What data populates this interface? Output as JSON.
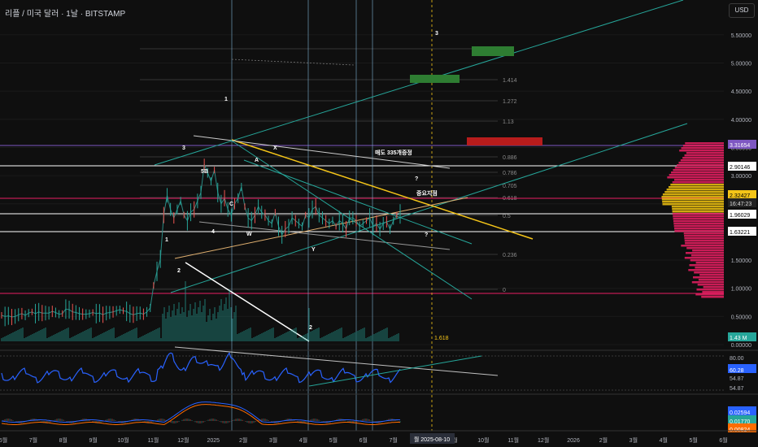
{
  "header": {
    "title": "리플 / 미국 달러 · 1날 · BITSTAMP",
    "currency": "USD"
  },
  "colors": {
    "background": "#0f0f0f",
    "price_line": "#2b8a84",
    "fib_yellow": "#f5c518",
    "channel": "#26a69a",
    "volume_profile_up": "#f2c40f",
    "volume_profile_down": "#e91e63",
    "rsi": "#2962ff",
    "rsi_band": "#c0c0c0",
    "green_box": "#2e7d32",
    "red_box": "#b71c1c"
  },
  "chart_data": {
    "type": "line",
    "title": "리플 / 미국 달러 · 1날 · BITSTAMP",
    "x_ticks": [
      "5월",
      "7월",
      "8월",
      "9월",
      "10월",
      "11월",
      "12월",
      "2025",
      "2월",
      "3월",
      "4월",
      "5월",
      "6월",
      "7월",
      "8월",
      "9월",
      "10월",
      "11월",
      "12월",
      "2026",
      "2월",
      "3월",
      "4월",
      "5월",
      "6월"
    ],
    "y_ticks": [
      "5.50000",
      "5.00000",
      "4.50000",
      "4.00000",
      "3.50000",
      "3.00000",
      "2.50000",
      "2.00000",
      "1.50000",
      "1.00000",
      "0.50000",
      "0.00000"
    ],
    "ylim": [
      0,
      5.7
    ],
    "series": [
      {
        "values": [
          0.52,
          0.5,
          0.51,
          0.49,
          0.5,
          0.53,
          0.55,
          0.52,
          0.56,
          0.58,
          0.55,
          0.58,
          0.56,
          0.56,
          0.56,
          0.59,
          0.57,
          0.54,
          0.55,
          0.63,
          0.62,
          0.58,
          0.57,
          0.55,
          0.54,
          0.54,
          0.55,
          0.57,
          0.55,
          0.56,
          0.53,
          0.56,
          0.57,
          0.58,
          0.6,
          0.62,
          0.6,
          0.59,
          0.55,
          0.53,
          0.55,
          0.56,
          0.54,
          0.58,
          0.65,
          1.05,
          1.3,
          1.52,
          2.3,
          2.65,
          2.4,
          2.25,
          2.4,
          2.55,
          2.3,
          2.2,
          2.35,
          2.4,
          2.55,
          2.7,
          3.2,
          3.05,
          2.9,
          3.1,
          2.7,
          2.5,
          2.6,
          2.4,
          2.3,
          2.5,
          2.6,
          2.8,
          2.45,
          2.25,
          2.2,
          2.3,
          2.45,
          2.35,
          2.3,
          2.2,
          2.15,
          2.35,
          2.1,
          1.95,
          2.05,
          2.1,
          2.25,
          2.2,
          2.15,
          2.1,
          2.3,
          2.25,
          2.4,
          2.45,
          2.3,
          2.25,
          2.2,
          2.15,
          2.2,
          2.1,
          2.2,
          2.15,
          2.05,
          2.25,
          2.25,
          2.2,
          2.1,
          2.15,
          2.2,
          2.25,
          2.1,
          2.15,
          2.05,
          2.15,
          2.18,
          2.05,
          2.2,
          2.3,
          2.32
        ]
      }
    ],
    "current_price_labels": [
      "3.31654",
      "2.90146",
      "2.32427",
      "16:47:23",
      "1.96029",
      "1.63221",
      "1.43 M"
    ],
    "fib_levels": [
      {
        "label": "1.414"
      },
      {
        "label": "1.272"
      },
      {
        "label": "1.13"
      },
      {
        "label": "0.886"
      },
      {
        "label": "0.786"
      },
      {
        "label": "0.705"
      },
      {
        "label": "0.618"
      },
      {
        "label": "0.5"
      },
      {
        "label": "0.236"
      },
      {
        "label": "0"
      },
      {
        "label": "1.618"
      }
    ],
    "annotations": [
      "1",
      "2",
      "3",
      "4",
      "5",
      "W",
      "X",
      "Y",
      "A",
      "B",
      "C",
      "1",
      "2",
      "3",
      "?",
      "?",
      "매도 335개증정",
      "중요지점"
    ],
    "rsi": {
      "ticks": [
        "80.00",
        "60.28",
        "54.87",
        "54.87"
      ],
      "current": "60.28"
    },
    "macd": {
      "ticks": [
        "0.02594",
        "0.01770",
        "0.00824"
      ]
    },
    "date_marker": "월 2025-08-10"
  }
}
